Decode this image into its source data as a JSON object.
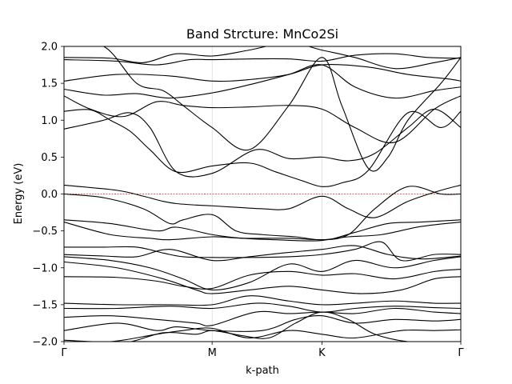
{
  "chart_data": {
    "type": "line",
    "title": "Band Strcture: MnCo2Si",
    "xlabel": "k-path",
    "ylabel": "Energy (eV)",
    "xlim": [
      0,
      3
    ],
    "ylim": [
      -2.0,
      2.0
    ],
    "x_ticks": [
      {
        "label": "Γ",
        "value": 0
      },
      {
        "label": "M",
        "value": 1.12
      },
      {
        "label": "K",
        "value": 1.95
      },
      {
        "label": "Γ",
        "value": 3
      }
    ],
    "y_ticks": [
      {
        "label": "2.0",
        "value": 2.0
      },
      {
        "label": "1.5",
        "value": 1.5
      },
      {
        "label": "1.0",
        "value": 1.0
      },
      {
        "label": "0.5",
        "value": 0.5
      },
      {
        "label": "0.0",
        "value": 0.0
      },
      {
        "label": "−0.5",
        "value": -0.5
      },
      {
        "label": "−1.0",
        "value": -1.0
      },
      {
        "label": "−1.5",
        "value": -1.5
      },
      {
        "label": "−2.0",
        "value": -2.0
      }
    ],
    "grid": "vertical lines at high-symmetry points",
    "fermi_level": {
      "value": 0.0,
      "style": "dashed",
      "color": "#d62728"
    },
    "band_color": "#000000",
    "bands": [
      {
        "x": [
          0,
          0.35,
          0.6,
          0.85,
          1.12,
          1.4,
          1.7,
          1.95,
          2.2,
          2.5,
          2.8,
          3
        ],
        "y": [
          1.85,
          1.84,
          1.78,
          1.9,
          1.87,
          1.95,
          2.05,
          1.95,
          1.85,
          1.7,
          1.78,
          1.85
        ]
      },
      {
        "x": [
          0,
          0.4,
          0.7,
          0.95,
          1.12,
          1.4,
          1.7,
          1.95,
          2.2,
          2.5,
          2.75,
          3
        ],
        "y": [
          1.82,
          1.8,
          1.75,
          1.82,
          1.82,
          1.83,
          1.83,
          1.8,
          1.88,
          1.9,
          1.85,
          1.84
        ]
      },
      {
        "x": [
          0,
          0.4,
          0.8,
          1.12,
          1.4,
          1.7,
          1.95,
          2.3,
          2.6,
          2.9,
          3
        ],
        "y": [
          1.53,
          1.62,
          1.6,
          1.53,
          1.55,
          1.62,
          1.75,
          1.72,
          1.62,
          1.56,
          1.53
        ]
      },
      {
        "x": [
          0,
          0.3,
          0.55,
          0.8,
          1.12,
          1.4,
          1.7,
          1.95,
          2.2,
          2.5,
          2.8,
          3
        ],
        "y": [
          1.42,
          1.34,
          1.36,
          1.3,
          1.37,
          1.48,
          1.62,
          1.75,
          1.45,
          1.3,
          1.4,
          1.45
        ]
      },
      {
        "x": [
          0,
          0.2,
          0.45,
          0.7,
          0.9,
          1.12,
          1.4,
          1.7,
          1.95,
          2.2,
          2.5,
          2.8,
          3
        ],
        "y": [
          1.33,
          1.15,
          1.05,
          1.25,
          1.2,
          1.17,
          1.18,
          1.2,
          1.15,
          0.9,
          0.7,
          1.15,
          1.33
        ]
      },
      {
        "x": [
          0,
          0.2,
          0.35,
          0.5,
          0.65,
          0.85,
          1.12,
          1.4,
          1.6,
          1.8,
          1.95,
          2.1,
          2.3,
          2.6,
          2.85,
          3
        ],
        "y": [
          1.12,
          1.14,
          1.0,
          0.85,
          0.6,
          0.3,
          0.38,
          0.42,
          0.3,
          0.18,
          0.1,
          0.15,
          0.32,
          1.1,
          0.9,
          1.12
        ]
      },
      {
        "x": [
          0,
          0.3,
          0.5,
          0.65,
          0.85,
          1.12,
          1.45,
          1.7,
          1.95,
          2.15,
          2.35,
          2.6,
          2.8,
          3
        ],
        "y": [
          0.88,
          1.0,
          1.1,
          0.9,
          0.3,
          0.28,
          0.6,
          0.48,
          0.5,
          0.45,
          0.55,
          0.9,
          1.15,
          0.9
        ]
      },
      {
        "x": [
          0,
          0.3,
          0.55,
          0.75,
          0.9,
          1.12,
          1.4,
          1.7,
          1.95,
          2.1,
          2.3,
          2.45,
          2.6,
          2.85,
          3
        ],
        "y": [
          2.0,
          2.0,
          1.5,
          1.4,
          1.2,
          0.9,
          0.6,
          1.2,
          1.85,
          1.2,
          0.35,
          0.5,
          1.0,
          1.5,
          1.85
        ]
      },
      {
        "x": [
          0,
          0.4,
          0.6,
          0.75,
          0.85,
          1.0,
          1.12,
          1.3,
          1.5,
          1.7,
          1.95,
          2.15,
          2.35,
          2.6,
          2.85,
          3
        ],
        "y": [
          0.12,
          0.05,
          -0.03,
          -0.1,
          -0.13,
          -0.15,
          -0.16,
          -0.18,
          -0.2,
          -0.2,
          -0.03,
          -0.2,
          -0.32,
          -0.1,
          0.05,
          0.12
        ]
      },
      {
        "x": [
          0,
          0.3,
          0.6,
          0.8,
          0.9,
          1.12,
          1.3,
          1.5,
          1.75,
          1.95,
          2.15,
          2.35,
          2.6,
          2.85,
          3
        ],
        "y": [
          0.0,
          -0.05,
          -0.2,
          -0.4,
          -0.35,
          -0.28,
          -0.5,
          -0.55,
          -0.58,
          -0.62,
          -0.55,
          -0.2,
          0.1,
          0.0,
          0.0
        ]
      },
      {
        "x": [
          0,
          0.35,
          0.7,
          0.85,
          1.12,
          1.35,
          1.6,
          1.95,
          2.2,
          2.45,
          2.7,
          3
        ],
        "y": [
          -0.35,
          -0.4,
          -0.5,
          -0.45,
          -0.55,
          -0.6,
          -0.62,
          -0.63,
          -0.52,
          -0.4,
          -0.38,
          -0.35
        ]
      },
      {
        "x": [
          0,
          0.35,
          0.65,
          0.8,
          1.12,
          1.35,
          1.7,
          1.95,
          2.15,
          2.4,
          2.7,
          3
        ],
        "y": [
          -0.38,
          -0.55,
          -0.6,
          -0.62,
          -0.58,
          -0.6,
          -0.6,
          -0.62,
          -0.58,
          -0.55,
          -0.44,
          -0.38
        ]
      },
      {
        "x": [
          0,
          0.3,
          0.55,
          0.75,
          0.9,
          1.12,
          1.4,
          1.7,
          1.95,
          2.2,
          2.4,
          2.55,
          2.8,
          3
        ],
        "y": [
          -0.72,
          -0.72,
          -0.72,
          -0.8,
          -0.85,
          -0.86,
          -0.86,
          -0.85,
          -0.82,
          -0.75,
          -0.65,
          -0.9,
          -0.82,
          -0.82
        ]
      },
      {
        "x": [
          0,
          0.3,
          0.55,
          0.8,
          1.12,
          1.4,
          1.65,
          1.95,
          2.2,
          2.45,
          2.7,
          3
        ],
        "y": [
          -0.82,
          -0.84,
          -0.85,
          -0.75,
          -0.9,
          -0.85,
          -0.8,
          -0.75,
          -0.7,
          -0.82,
          -0.88,
          -0.84
        ]
      },
      {
        "x": [
          0,
          0.35,
          0.65,
          0.9,
          1.12,
          1.4,
          1.7,
          1.95,
          2.2,
          2.5,
          2.8,
          3
        ],
        "y": [
          -0.85,
          -0.9,
          -1.0,
          -1.15,
          -1.3,
          -1.2,
          -0.95,
          -1.05,
          -0.9,
          -1.0,
          -0.9,
          -0.85
        ]
      },
      {
        "x": [
          0,
          0.4,
          0.7,
          0.9,
          1.12,
          1.4,
          1.7,
          1.95,
          2.2,
          2.5,
          2.8,
          3
        ],
        "y": [
          -1.12,
          -1.13,
          -1.18,
          -1.25,
          -1.28,
          -1.1,
          -1.05,
          -1.1,
          -1.08,
          -1.15,
          -1.05,
          -1.02
        ]
      },
      {
        "x": [
          0,
          0.4,
          0.75,
          1.0,
          1.12,
          1.4,
          1.7,
          1.95,
          2.25,
          2.55,
          2.8,
          3
        ],
        "y": [
          -0.92,
          -1.0,
          -1.15,
          -1.3,
          -1.35,
          -1.3,
          -1.25,
          -1.3,
          -1.35,
          -1.3,
          -1.15,
          -1.12
        ]
      },
      {
        "x": [
          0,
          0.4,
          0.8,
          1.12,
          1.4,
          1.7,
          1.95,
          2.2,
          2.5,
          2.8,
          3
        ],
        "y": [
          -1.48,
          -1.5,
          -1.5,
          -1.5,
          -1.38,
          -1.45,
          -1.5,
          -1.48,
          -1.45,
          -1.48,
          -1.48
        ]
      },
      {
        "x": [
          0,
          0.4,
          0.8,
          1.12,
          1.45,
          1.7,
          1.95,
          2.2,
          2.5,
          2.8,
          3
        ],
        "y": [
          -1.55,
          -1.55,
          -1.52,
          -1.55,
          -1.48,
          -1.52,
          -1.6,
          -1.55,
          -1.52,
          -1.54,
          -1.55
        ]
      },
      {
        "x": [
          0,
          0.35,
          0.7,
          1.0,
          1.12,
          1.45,
          1.7,
          1.95,
          2.2,
          2.5,
          2.8,
          3
        ],
        "y": [
          -1.67,
          -1.65,
          -1.7,
          -1.75,
          -1.78,
          -1.6,
          -1.62,
          -1.6,
          -1.62,
          -1.55,
          -1.6,
          -1.62
        ]
      },
      {
        "x": [
          0,
          0.4,
          0.7,
          0.85,
          1.12,
          1.5,
          1.75,
          1.95,
          2.2,
          2.5,
          2.8,
          3
        ],
        "y": [
          -1.85,
          -1.75,
          -1.85,
          -1.8,
          -1.85,
          -1.85,
          -1.7,
          -1.65,
          -1.75,
          -1.7,
          -1.72,
          -1.7
        ]
      },
      {
        "x": [
          0,
          0.35,
          0.7,
          0.9,
          1.12,
          1.4,
          1.7,
          1.95,
          2.2,
          2.55,
          2.8,
          3
        ],
        "y": [
          -1.98,
          -2.0,
          -1.9,
          -1.85,
          -1.82,
          -1.95,
          -1.85,
          -1.9,
          -1.95,
          -1.85,
          -1.85,
          -1.84
        ]
      },
      {
        "x": [
          0,
          0.45,
          0.75,
          1.0,
          1.12,
          1.35,
          1.55,
          1.75,
          1.95,
          2.15,
          2.35,
          2.6,
          2.85,
          3
        ],
        "y": [
          -2.05,
          -2.02,
          -1.88,
          -1.9,
          -1.85,
          -1.92,
          -1.95,
          -1.75,
          -1.6,
          -1.7,
          -1.9,
          -2.0,
          -2.0,
          -2.0
        ]
      }
    ]
  }
}
